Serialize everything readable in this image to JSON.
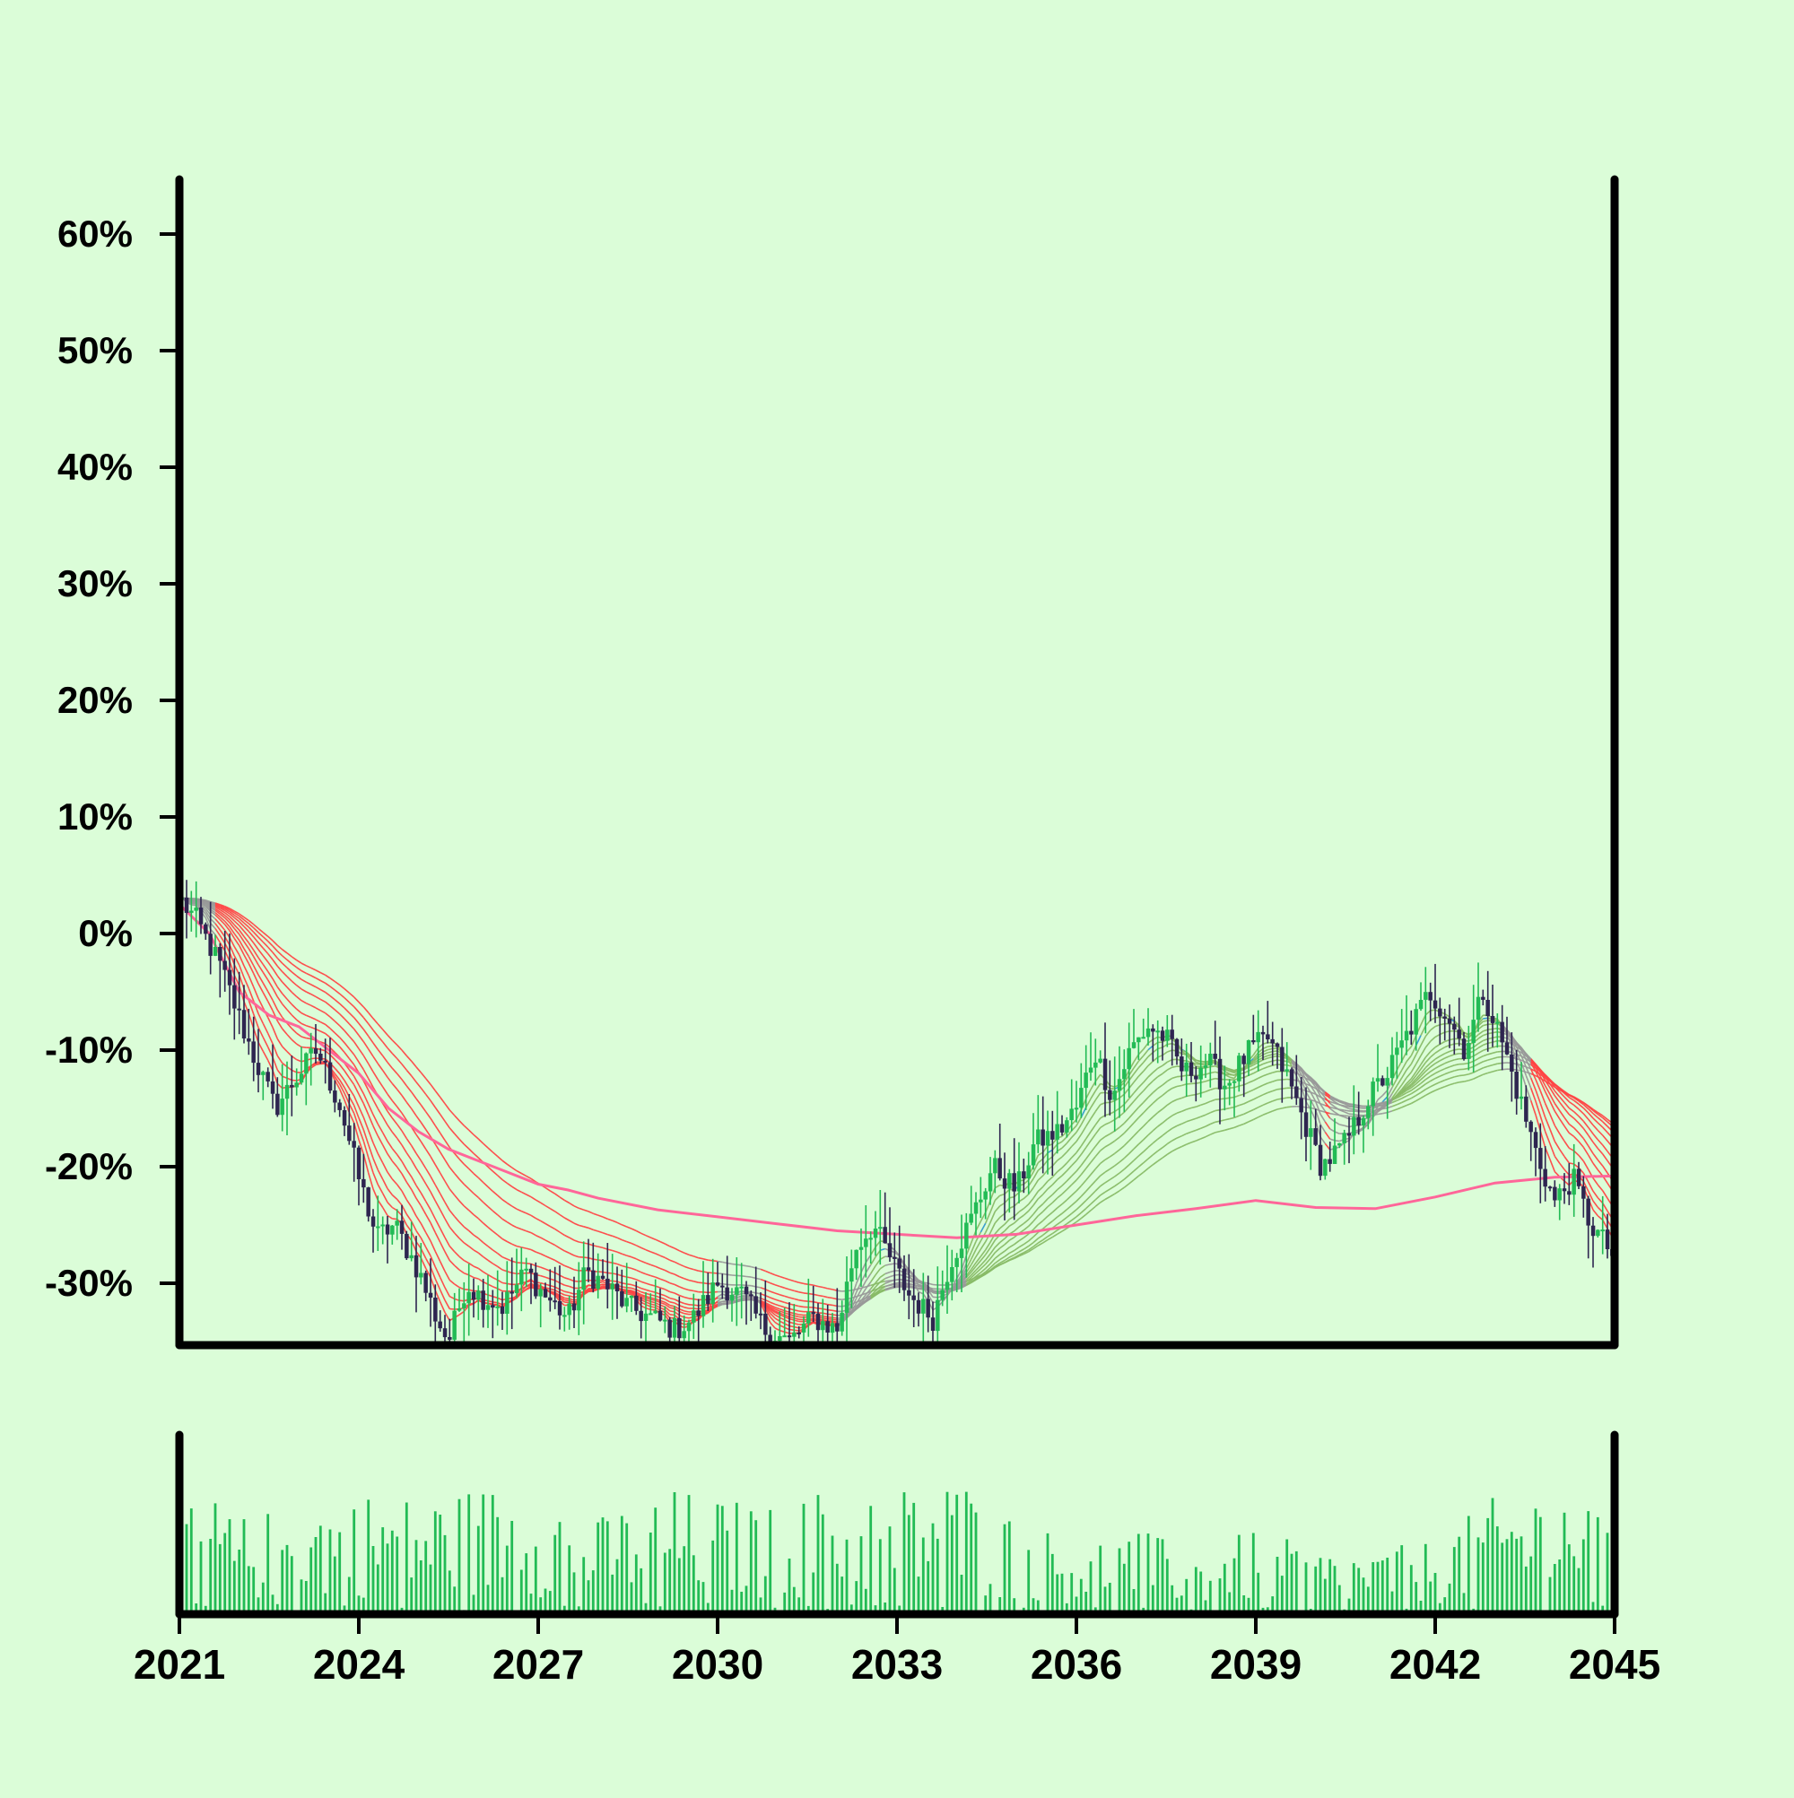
{
  "chart_data": [
    {
      "type": "candlestick",
      "title": "",
      "xlabel": "",
      "ylabel": "",
      "x_range": [
        2021,
        2045
      ],
      "y_range": [
        -35.5,
        65
      ],
      "y_unit": "%",
      "y_ticks": [
        60,
        50,
        40,
        30,
        20,
        10,
        0,
        -10,
        -20,
        -30
      ],
      "y_tick_labels": [
        "60%",
        "50%",
        "40%",
        "30%",
        "20%",
        "10%",
        "0%",
        "-10%",
        "-20%",
        "-30%"
      ],
      "x_ticks": [
        2021,
        2024,
        2027,
        2030,
        2033,
        2036,
        2039,
        2042,
        2045
      ],
      "x_tick_labels": [
        "2021",
        "2024",
        "2027",
        "2030",
        "2033",
        "2036",
        "2039",
        "2042",
        "2045"
      ],
      "grid": false,
      "legend": "none",
      "close_path": [
        [
          2021.0,
          3
        ],
        [
          2021.3,
          1
        ],
        [
          2021.7,
          -3
        ],
        [
          2022.2,
          -10
        ],
        [
          2022.6,
          -15
        ],
        [
          2023.0,
          -12
        ],
        [
          2023.3,
          -10
        ],
        [
          2023.7,
          -15
        ],
        [
          2024.0,
          -21
        ],
        [
          2024.3,
          -26
        ],
        [
          2024.6,
          -25
        ],
        [
          2025.0,
          -29
        ],
        [
          2025.3,
          -33
        ],
        [
          2025.5,
          -35
        ],
        [
          2025.8,
          -30
        ],
        [
          2026.0,
          -31
        ],
        [
          2026.4,
          -32
        ],
        [
          2026.8,
          -29
        ],
        [
          2027.1,
          -31
        ],
        [
          2027.5,
          -33
        ],
        [
          2027.8,
          -29
        ],
        [
          2028.1,
          -30
        ],
        [
          2028.5,
          -32
        ],
        [
          2028.9,
          -33
        ],
        [
          2029.3,
          -34
        ],
        [
          2029.6,
          -33
        ],
        [
          2030.0,
          -30
        ],
        [
          2030.4,
          -31
        ],
        [
          2030.8,
          -34
        ],
        [
          2031.2,
          -35
        ],
        [
          2031.6,
          -33
        ],
        [
          2032.0,
          -34
        ],
        [
          2032.3,
          -27
        ],
        [
          2032.6,
          -25
        ],
        [
          2032.9,
          -28
        ],
        [
          2033.2,
          -31
        ],
        [
          2033.6,
          -33
        ],
        [
          2033.9,
          -28
        ],
        [
          2034.2,
          -25
        ],
        [
          2034.6,
          -20
        ],
        [
          2035.0,
          -22
        ],
        [
          2035.3,
          -18
        ],
        [
          2035.7,
          -17
        ],
        [
          2036.0,
          -15
        ],
        [
          2036.3,
          -10
        ],
        [
          2036.6,
          -14
        ],
        [
          2036.9,
          -10
        ],
        [
          2037.2,
          -8
        ],
        [
          2037.5,
          -9
        ],
        [
          2037.8,
          -12
        ],
        [
          2038.2,
          -11
        ],
        [
          2038.5,
          -13
        ],
        [
          2038.9,
          -10
        ],
        [
          2039.2,
          -9
        ],
        [
          2039.5,
          -12
        ],
        [
          2039.8,
          -16
        ],
        [
          2040.1,
          -20
        ],
        [
          2040.5,
          -18
        ],
        [
          2040.9,
          -14
        ],
        [
          2041.2,
          -12
        ],
        [
          2041.6,
          -8
        ],
        [
          2041.9,
          -5
        ],
        [
          2042.2,
          -7
        ],
        [
          2042.5,
          -10
        ],
        [
          2042.8,
          -5
        ],
        [
          2043.1,
          -9
        ],
        [
          2043.4,
          -14
        ],
        [
          2043.7,
          -19
        ],
        [
          2044.0,
          -23
        ],
        [
          2044.3,
          -21
        ],
        [
          2044.6,
          -25
        ],
        [
          2044.9,
          -27
        ],
        [
          2045.0,
          -28
        ]
      ],
      "long_ma": [
        [
          2021.0,
          2.5
        ],
        [
          2021.5,
          0
        ],
        [
          2022.0,
          -5
        ],
        [
          2022.5,
          -7
        ],
        [
          2023.0,
          -8
        ],
        [
          2023.5,
          -10
        ],
        [
          2024.0,
          -12
        ],
        [
          2024.5,
          -15
        ],
        [
          2025.0,
          -17
        ],
        [
          2025.5,
          -18.5
        ],
        [
          2026.0,
          -19.5
        ],
        [
          2026.5,
          -20.5
        ],
        [
          2027.0,
          -21.5
        ],
        [
          2027.5,
          -22
        ],
        [
          2028.0,
          -22.7
        ],
        [
          2029.0,
          -23.7
        ],
        [
          2030.0,
          -24.3
        ],
        [
          2031.0,
          -24.9
        ],
        [
          2032.0,
          -25.5
        ],
        [
          2033.0,
          -25.8
        ],
        [
          2034.0,
          -26.1
        ],
        [
          2035.0,
          -25.8
        ],
        [
          2036.0,
          -25.0
        ],
        [
          2037.0,
          -24.2
        ],
        [
          2038.0,
          -23.6
        ],
        [
          2039.0,
          -22.9
        ],
        [
          2040.0,
          -23.5
        ],
        [
          2041.0,
          -23.6
        ],
        [
          2042.0,
          -22.6
        ],
        [
          2043.0,
          -21.4
        ],
        [
          2044.0,
          -20.9
        ],
        [
          2045.0,
          -20.8
        ]
      ],
      "colors": {
        "background": "#dbfdd8",
        "up_candle": "#22bb55",
        "down_candle": "#2e2550",
        "long_ma": "#ff6699",
        "ribbon_bear": "#ff4444",
        "ribbon_bull": "#88bb66",
        "ribbon_neutral": "#999999",
        "ribbon_accent": "#3399cc",
        "volume": "#22bb55",
        "axis": "#000000"
      }
    },
    {
      "type": "bar",
      "role": "volume",
      "x_range": [
        2021,
        2045
      ],
      "x_ticks": [
        2021,
        2024,
        2027,
        2030,
        2033,
        2036,
        2039,
        2042,
        2045
      ],
      "y_range": [
        0,
        1
      ],
      "y_ticks": [],
      "volume_profile": [
        [
          2021.0,
          0.68
        ],
        [
          2022.0,
          0.45
        ],
        [
          2023.0,
          0.52
        ],
        [
          2024.0,
          0.58
        ],
        [
          2025.0,
          0.55
        ],
        [
          2026.0,
          0.6
        ],
        [
          2027.0,
          0.62
        ],
        [
          2028.0,
          0.45
        ],
        [
          2029.0,
          0.6
        ],
        [
          2030.0,
          0.55
        ],
        [
          2031.0,
          0.5
        ],
        [
          2032.0,
          0.62
        ],
        [
          2033.0,
          0.6
        ],
        [
          2034.0,
          0.65
        ],
        [
          2035.0,
          0.45
        ],
        [
          2036.0,
          0.35
        ],
        [
          2037.0,
          0.4
        ],
        [
          2038.0,
          0.3
        ],
        [
          2039.0,
          0.4
        ],
        [
          2040.0,
          0.3
        ],
        [
          2041.0,
          0.3
        ],
        [
          2042.0,
          0.35
        ],
        [
          2043.0,
          0.55
        ],
        [
          2044.0,
          0.62
        ],
        [
          2045.0,
          0.55
        ]
      ],
      "color": "#22bb55"
    }
  ]
}
